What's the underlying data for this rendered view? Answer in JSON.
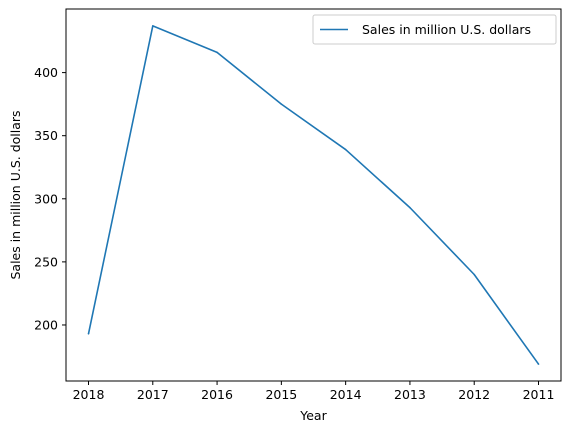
{
  "chart_data": {
    "type": "line",
    "x": [
      "2018",
      "2017",
      "2016",
      "2015",
      "2014",
      "2013",
      "2012",
      "2011"
    ],
    "series": [
      {
        "name": "Sales in million U.S. dollars",
        "values": [
          193,
          437,
          416,
          375,
          339,
          293,
          240,
          169
        ],
        "color": "#1f77b4"
      }
    ],
    "xlabel": "Year",
    "ylabel": "Sales in million U.S. dollars",
    "ylim": [
      155.6,
      450.4
    ],
    "yticks": [
      200,
      250,
      300,
      350,
      400
    ],
    "grid": false,
    "legend_position": "upper-right"
  }
}
